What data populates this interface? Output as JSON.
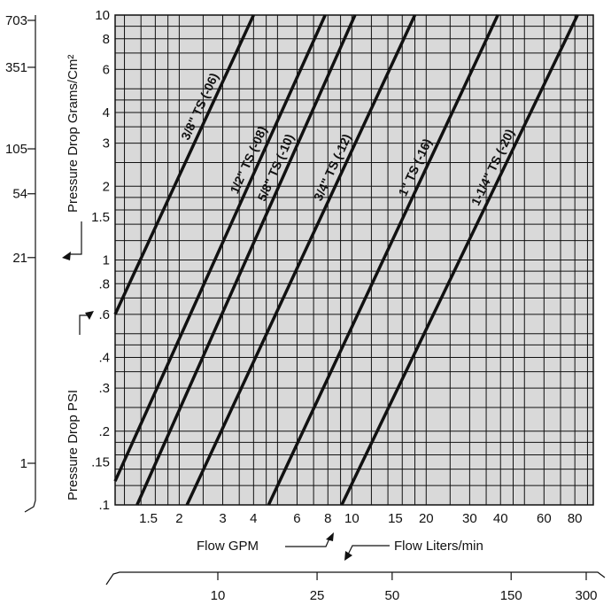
{
  "chart_data": {
    "type": "line",
    "title": "",
    "x_scale": "log",
    "y_scale": "log",
    "xlim": [
      1.1,
      95
    ],
    "ylim": [
      0.1,
      10
    ],
    "grid": true,
    "x_ticks": [
      {
        "value": 1.5,
        "label": "1.5"
      },
      {
        "value": 2,
        "label": "2"
      },
      {
        "value": 3,
        "label": "3"
      },
      {
        "value": 4,
        "label": "4"
      },
      {
        "value": 6,
        "label": "6"
      },
      {
        "value": 8,
        "label": "8"
      },
      {
        "value": 10,
        "label": "10"
      },
      {
        "value": 15,
        "label": "15"
      },
      {
        "value": 20,
        "label": "20"
      },
      {
        "value": 30,
        "label": "30"
      },
      {
        "value": 40,
        "label": "40"
      },
      {
        "value": 60,
        "label": "60"
      },
      {
        "value": 80,
        "label": "80"
      }
    ],
    "y_ticks": [
      {
        "value": 0.1,
        "label": ".1"
      },
      {
        "value": 0.15,
        "label": ".15"
      },
      {
        "value": 0.2,
        "label": ".2"
      },
      {
        "value": 0.3,
        "label": ".3"
      },
      {
        "value": 0.4,
        "label": ".4"
      },
      {
        "value": 0.6,
        "label": ".6"
      },
      {
        "value": 0.8,
        "label": ".8"
      },
      {
        "value": 1,
        "label": "1"
      },
      {
        "value": 1.5,
        "label": "1.5"
      },
      {
        "value": 2,
        "label": "2"
      },
      {
        "value": 3,
        "label": "3"
      },
      {
        "value": 4,
        "label": "4"
      },
      {
        "value": 6,
        "label": "6"
      },
      {
        "value": 8,
        "label": "8"
      },
      {
        "value": 10,
        "label": "10"
      }
    ],
    "x_grid_values": [
      1.2,
      1.4,
      1.6,
      1.8,
      2,
      2.5,
      3,
      3.5,
      4,
      4.5,
      5,
      6,
      7,
      8,
      9,
      10,
      12,
      14,
      16,
      18,
      20,
      25,
      30,
      35,
      40,
      45,
      50,
      60,
      70,
      80,
      90
    ],
    "y_grid_values": [
      0.12,
      0.14,
      0.16,
      0.18,
      0.2,
      0.25,
      0.3,
      0.35,
      0.4,
      0.45,
      0.5,
      0.6,
      0.7,
      0.8,
      0.9,
      1,
      1.2,
      1.4,
      1.6,
      1.8,
      2,
      2.5,
      3,
      3.5,
      4,
      4.5,
      5,
      6,
      7,
      8,
      9,
      10
    ],
    "xlabel": "Flow GPM",
    "ylabel": "Pressure Drop PSI",
    "secondary_x": {
      "label": "Flow Liters/min",
      "ticks": [
        {
          "value": 10,
          "label": "10"
        },
        {
          "value": 25,
          "label": "25"
        },
        {
          "value": 50,
          "label": "50"
        },
        {
          "value": 150,
          "label": "150"
        },
        {
          "value": 300,
          "label": "300"
        }
      ]
    },
    "secondary_y": {
      "label": "Pressure Drop Grams/Cm²",
      "ticks": [
        {
          "value": 1,
          "label": "1"
        },
        {
          "value": 21,
          "label": "21"
        },
        {
          "value": 54,
          "label": "54"
        },
        {
          "value": 105,
          "label": "105"
        },
        {
          "value": 351,
          "label": "351"
        },
        {
          "value": 703,
          "label": "703"
        }
      ]
    },
    "series": [
      {
        "name": "3/8\" TS (-06)",
        "x": [
          1.1,
          4.0
        ],
        "y": [
          0.6,
          10
        ]
      },
      {
        "name": "1/2\" TS (-08)",
        "x": [
          1.1,
          7.8
        ],
        "y": [
          0.125,
          10
        ]
      },
      {
        "name": "5/8\" TS (-10)",
        "x": [
          1.35,
          10.3
        ],
        "y": [
          0.1,
          10
        ]
      },
      {
        "name": "3/4\" TS (-12)",
        "x": [
          2.15,
          18.0
        ],
        "y": [
          0.1,
          10
        ]
      },
      {
        "name": "1\" TS (-16)",
        "x": [
          4.6,
          39.0
        ],
        "y": [
          0.1,
          10
        ]
      },
      {
        "name": "1-1/4\" TS (-20)",
        "x": [
          9.1,
          82.0
        ],
        "y": [
          0.1,
          10
        ]
      }
    ]
  }
}
